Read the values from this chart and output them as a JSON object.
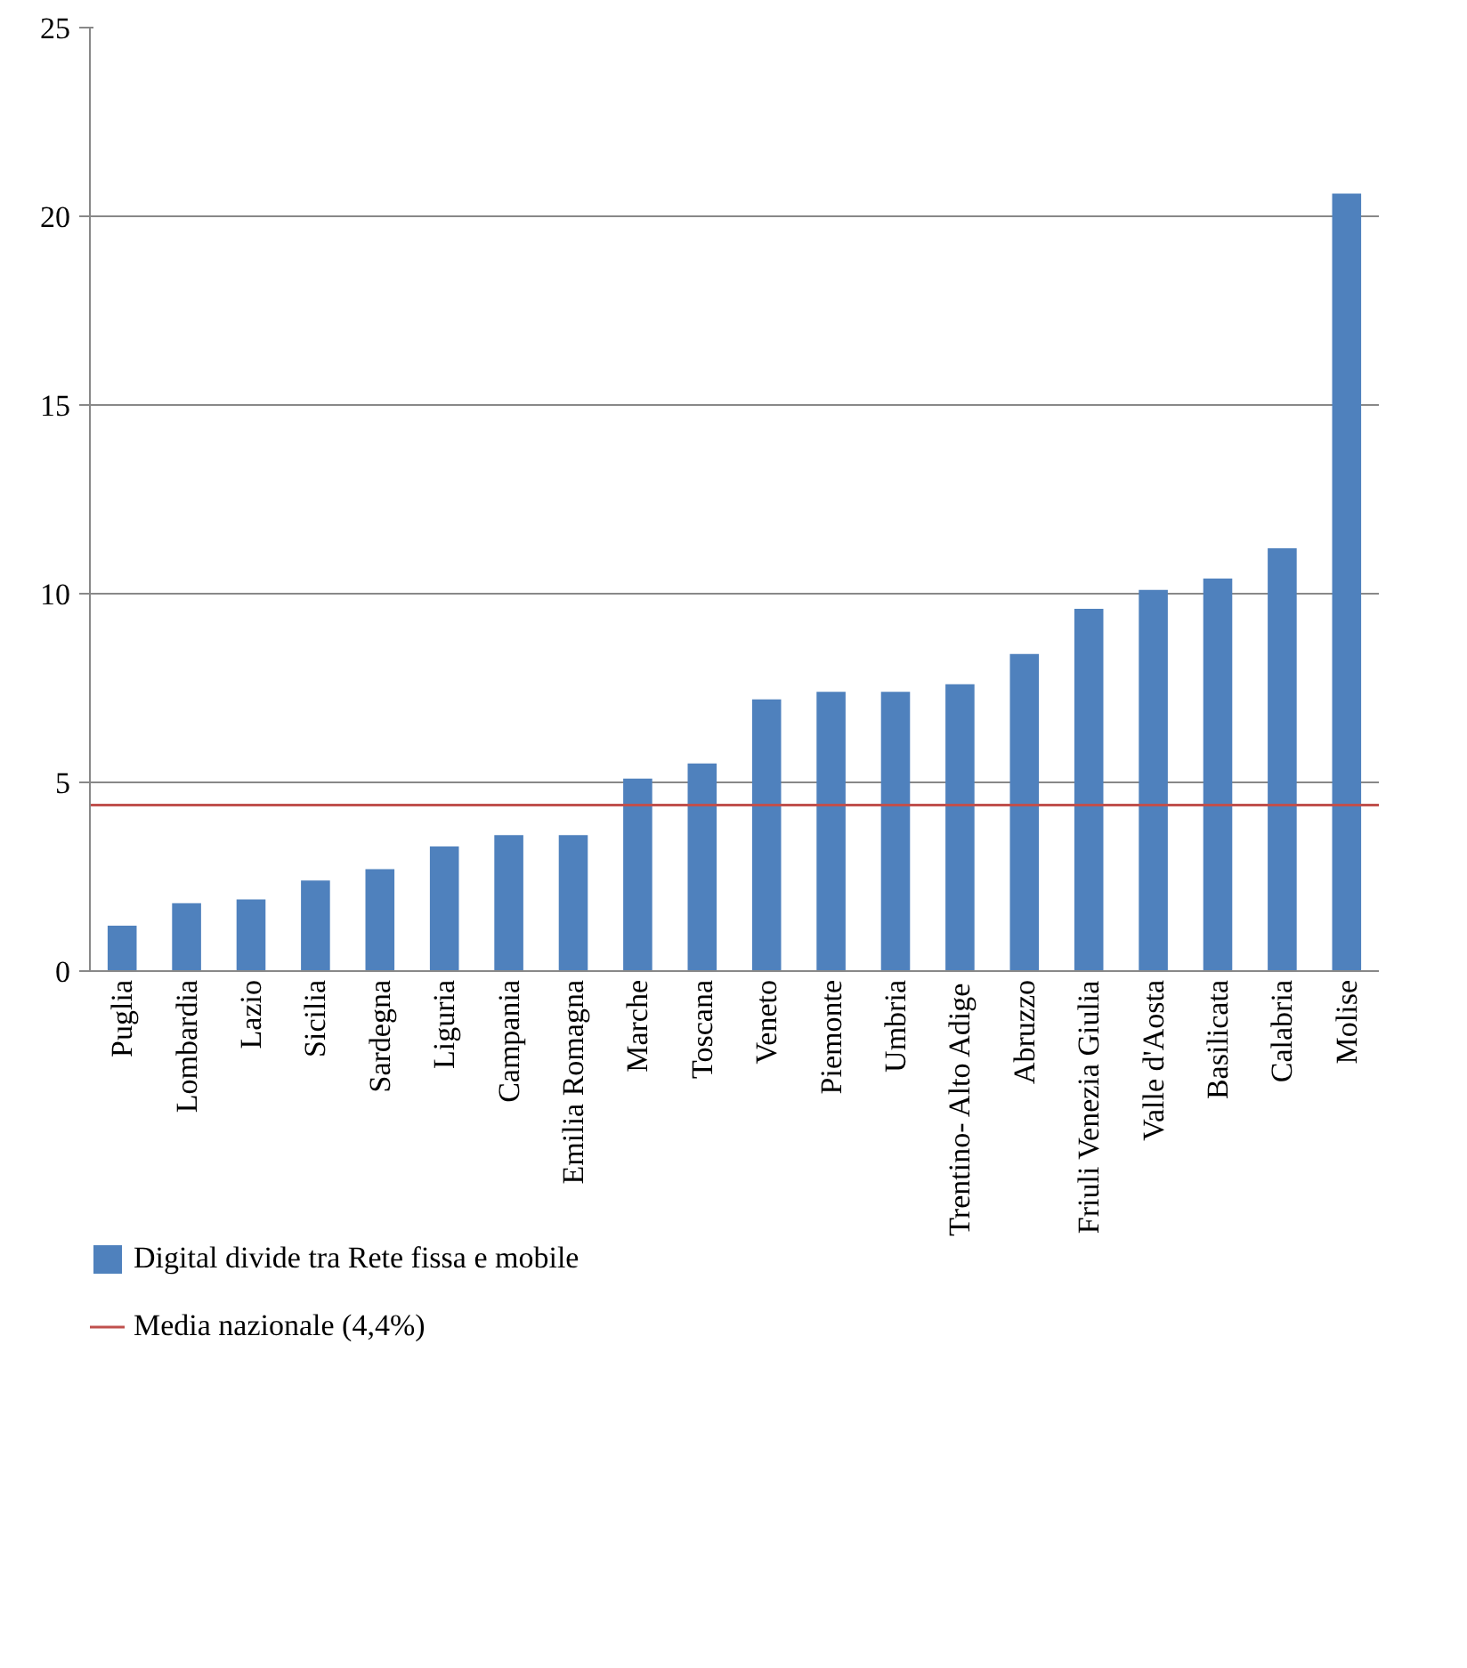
{
  "chart_data": {
    "type": "bar",
    "categories": [
      "Puglia",
      "Lombardia",
      "Lazio",
      "Sicilia",
      "Sardegna",
      "Liguria",
      "Campania",
      "Emilia Romagna",
      "Marche",
      "Toscana",
      "Veneto",
      "Piemonte",
      "Umbria",
      "Trentino- Alto Adige",
      "Abruzzo",
      "Friuli Venezia Giulia",
      "Valle d'Aosta",
      "Basilicata",
      "Calabria",
      "Molise"
    ],
    "series": [
      {
        "name": "Digital divide tra Rete fissa e mobile",
        "color": "#4f81bd",
        "values": [
          1.2,
          1.8,
          1.9,
          2.4,
          2.7,
          3.3,
          3.6,
          3.6,
          5.1,
          5.5,
          7.2,
          7.4,
          7.4,
          7.6,
          8.4,
          9.6,
          10.1,
          10.4,
          11.2,
          20.6
        ]
      }
    ],
    "ref_lines": [
      {
        "axis": "y",
        "value": 4.4,
        "label": "Media nazionale (4,4%)",
        "color": "#c0504d"
      }
    ],
    "ylim": [
      0,
      25
    ],
    "yticks": [
      0,
      5,
      10,
      15,
      20,
      25
    ],
    "grid": "y",
    "legend": "bottom"
  }
}
